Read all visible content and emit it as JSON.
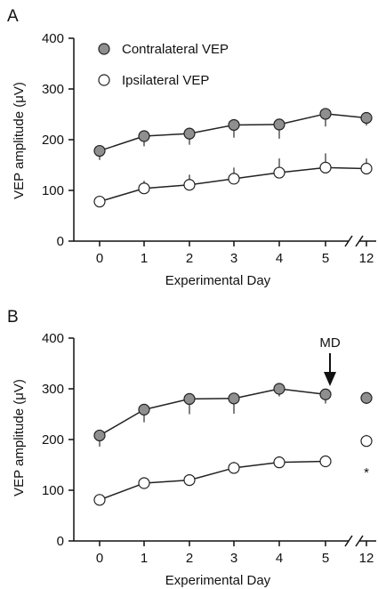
{
  "chart_data": [
    {
      "panel": "A",
      "type": "line",
      "categories": [
        "0",
        "1",
        "2",
        "3",
        "4",
        "5",
        "12"
      ],
      "xlabel": "Experimental Day",
      "ylabel": "VEP amplitude (μV)",
      "ylim": [
        0,
        400
      ],
      "yticks": [
        "0",
        "100",
        "200",
        "300",
        "400"
      ],
      "x_axis_break": "between 5 and 12",
      "legend": {
        "position": "top-left",
        "entries": [
          "Contralateral VEP",
          "Ipsilateral VEP"
        ]
      },
      "series": [
        {
          "name": "Contralateral VEP",
          "marker": "filled-gray",
          "color": "#8f8f8f",
          "values": [
            178,
            207,
            212,
            229,
            230,
            251,
            243
          ],
          "errors": [
            18,
            20,
            22,
            25,
            28,
            25,
            15
          ]
        },
        {
          "name": "Ipsilateral VEP",
          "marker": "open",
          "color": "#ffffff",
          "values": [
            78,
            104,
            111,
            123,
            135,
            145,
            143
          ],
          "errors": [
            10,
            15,
            20,
            22,
            28,
            28,
            20
          ]
        }
      ],
      "annotations": []
    },
    {
      "panel": "B",
      "type": "line",
      "categories": [
        "0",
        "1",
        "2",
        "3",
        "4",
        "5",
        "12"
      ],
      "xlabel": "Experimental Day",
      "ylabel": "VEP amplitude (μV)",
      "ylim": [
        0,
        400
      ],
      "yticks": [
        "0",
        "100",
        "200",
        "300",
        "400"
      ],
      "x_axis_break": "between 5 and 12",
      "series": [
        {
          "name": "Contralateral VEP",
          "marker": "filled-gray",
          "color": "#8f8f8f",
          "values": [
            208,
            259,
            280,
            281,
            300,
            289,
            282
          ],
          "errors": [
            22,
            25,
            30,
            30,
            15,
            18,
            12
          ],
          "connected_through": 5
        },
        {
          "name": "Ipsilateral VEP",
          "marker": "open",
          "color": "#ffffff",
          "values": [
            81,
            114,
            120,
            144,
            155,
            157,
            197
          ],
          "errors": [
            10,
            10,
            8,
            12,
            12,
            10,
            12
          ],
          "connected_through": 5
        }
      ],
      "annotations": [
        {
          "text": "MD",
          "type": "arrow",
          "at_category": "5"
        },
        {
          "text": "*",
          "type": "significance",
          "at_category": "12"
        }
      ]
    }
  ]
}
